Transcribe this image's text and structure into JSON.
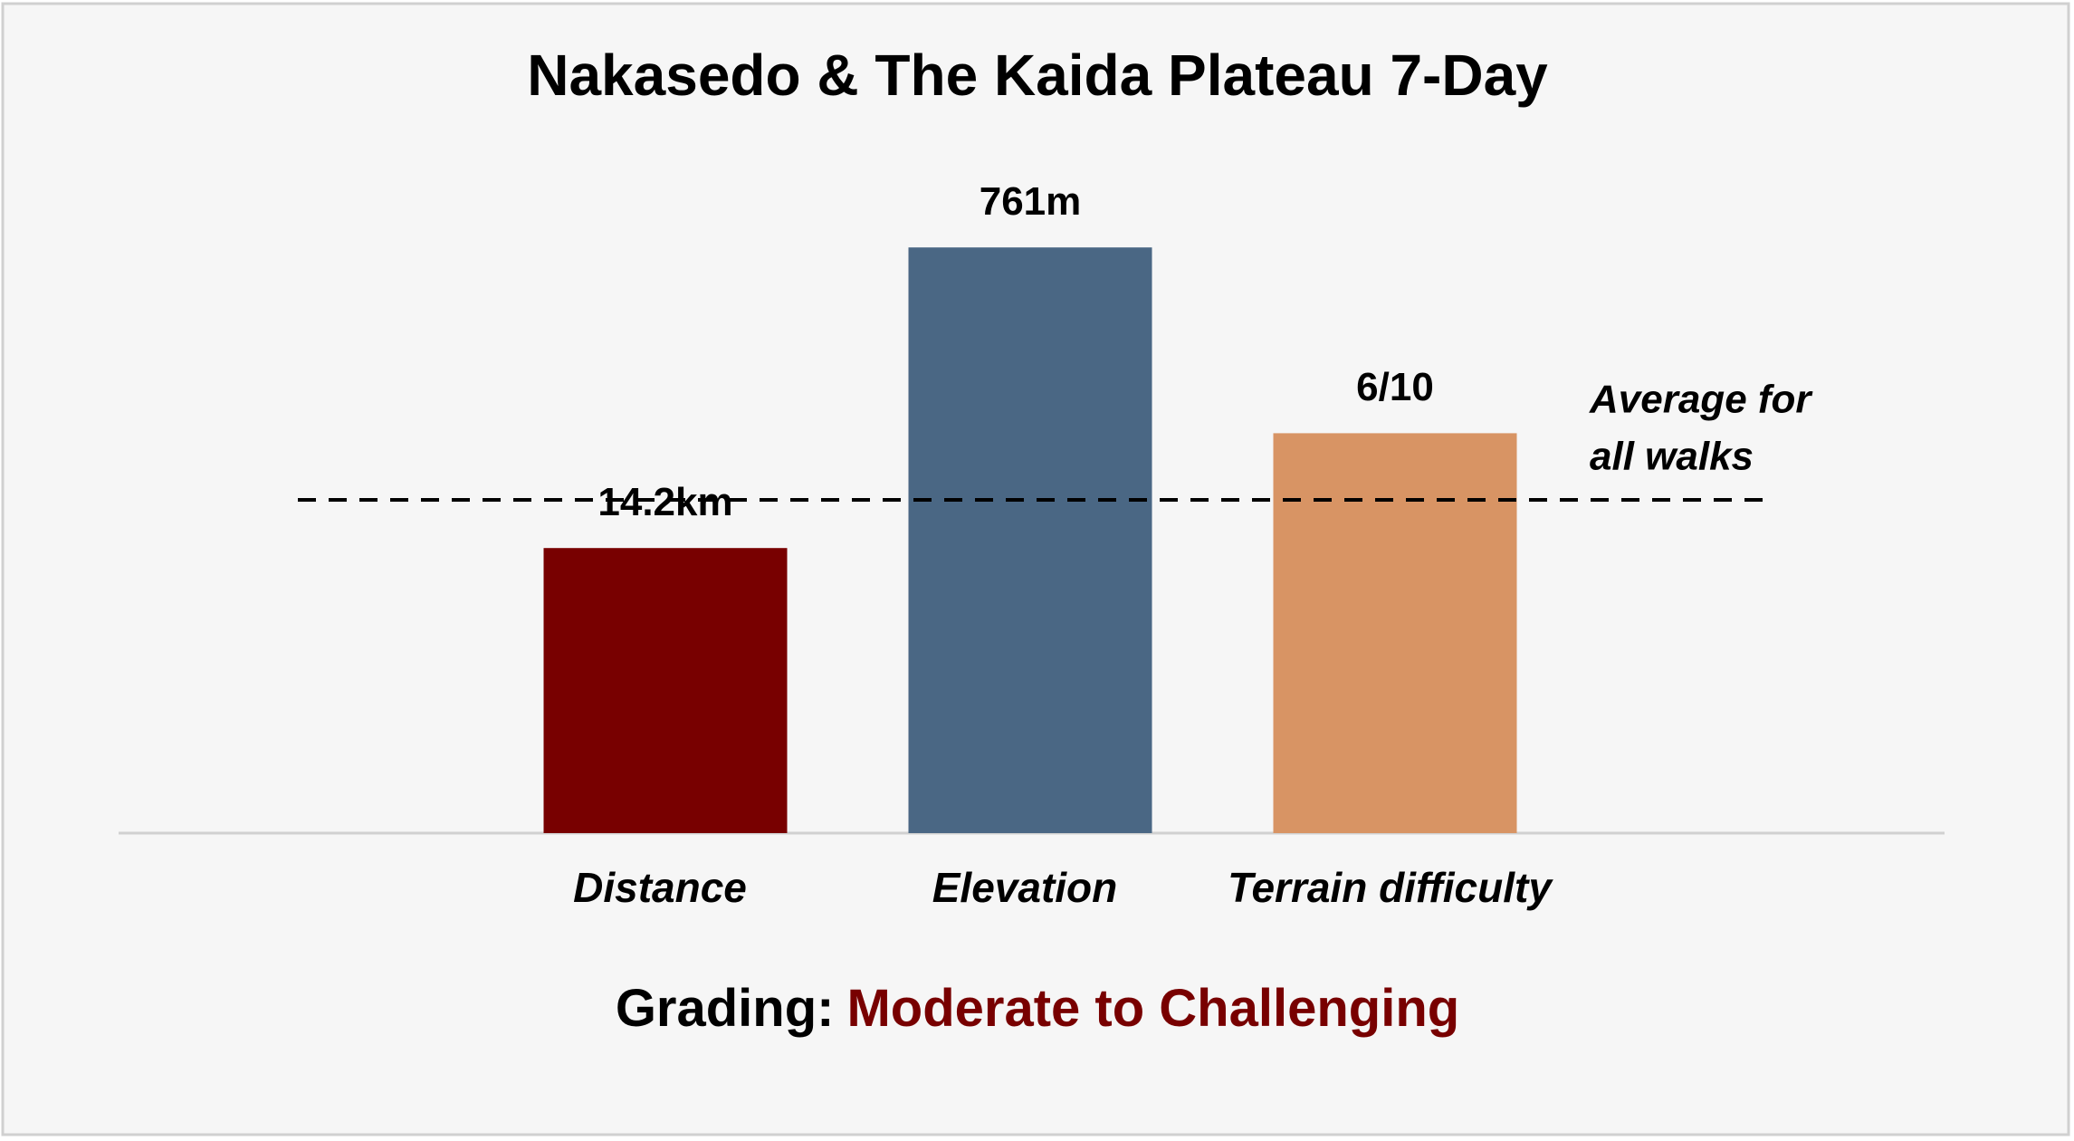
{
  "chart_data": {
    "type": "bar",
    "title": "Nakasedo & The Kaida Plateau 7-Day",
    "categories": [
      "Distance",
      "Elevation",
      "Terrain difficulty"
    ],
    "values": [
      14.2,
      761,
      6
    ],
    "value_labels": [
      "14.2km",
      "761m",
      "6/10"
    ],
    "colors": [
      "#780000",
      "#4a6784",
      "#d89464"
    ],
    "averages": [
      16.6,
      433,
      5
    ],
    "average_label": [
      "Average for",
      "all walks"
    ],
    "grading_label": "Grading:",
    "grading": "Moderate to Challenging",
    "grading_color": "#780000"
  }
}
